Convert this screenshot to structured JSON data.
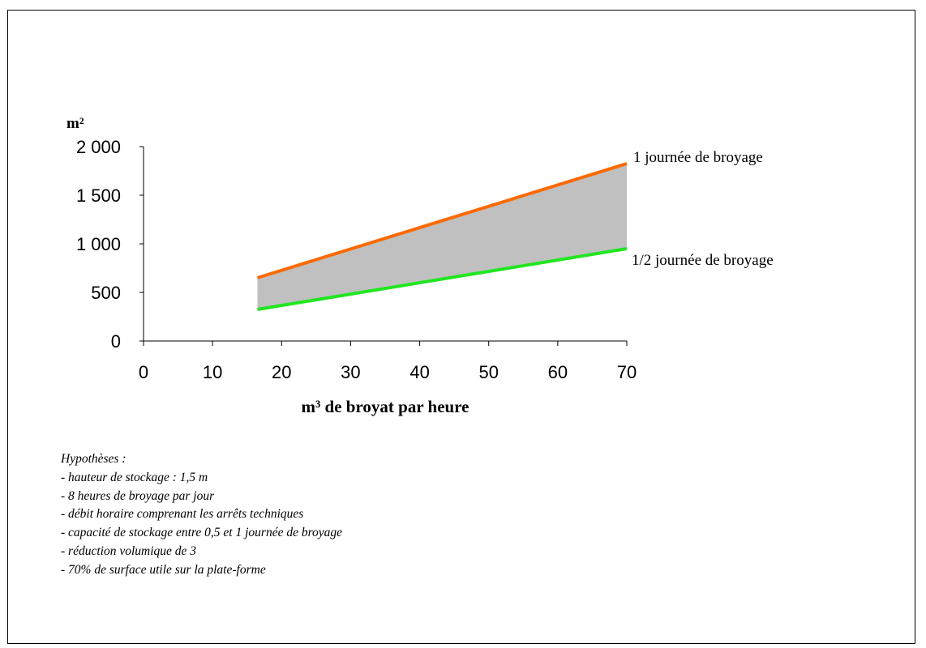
{
  "chart_data": {
    "type": "area",
    "ylabel": "m²",
    "xlabel": "m³ de broyat par heure",
    "xlim": [
      0,
      70
    ],
    "ylim": [
      0,
      2000
    ],
    "x_ticks": [
      0,
      10,
      20,
      30,
      40,
      50,
      60,
      70
    ],
    "x_tick_labels": [
      "0",
      "10",
      "20",
      "30",
      "40",
      "50",
      "60",
      "70"
    ],
    "y_ticks": [
      0,
      500,
      1000,
      1500,
      2000
    ],
    "y_tick_labels": [
      "0",
      "500",
      "1 000",
      "1 500",
      "2 000"
    ],
    "grid": false,
    "series": [
      {
        "name": "1 journée de broyage",
        "color": "#ff6a00",
        "x": [
          16.5,
          70
        ],
        "values": [
          650,
          1825
        ]
      },
      {
        "name": "1/2 journée de broyage",
        "color": "#22e622",
        "x": [
          16.5,
          70
        ],
        "values": [
          325,
          950
        ]
      }
    ],
    "band_color": "#c0c0c0"
  },
  "notes": {
    "title": "Hypothèses :",
    "items": [
      "- hauteur de stockage : 1,5 m",
      "- 8 heures de broyage par jour",
      "- débit horaire comprenant les arrêts techniques",
      "- capacité de stockage entre 0,5 et 1 journée de broyage",
      "- réduction volumique de 3",
      "- 70% de surface utile sur la plate-forme"
    ]
  }
}
